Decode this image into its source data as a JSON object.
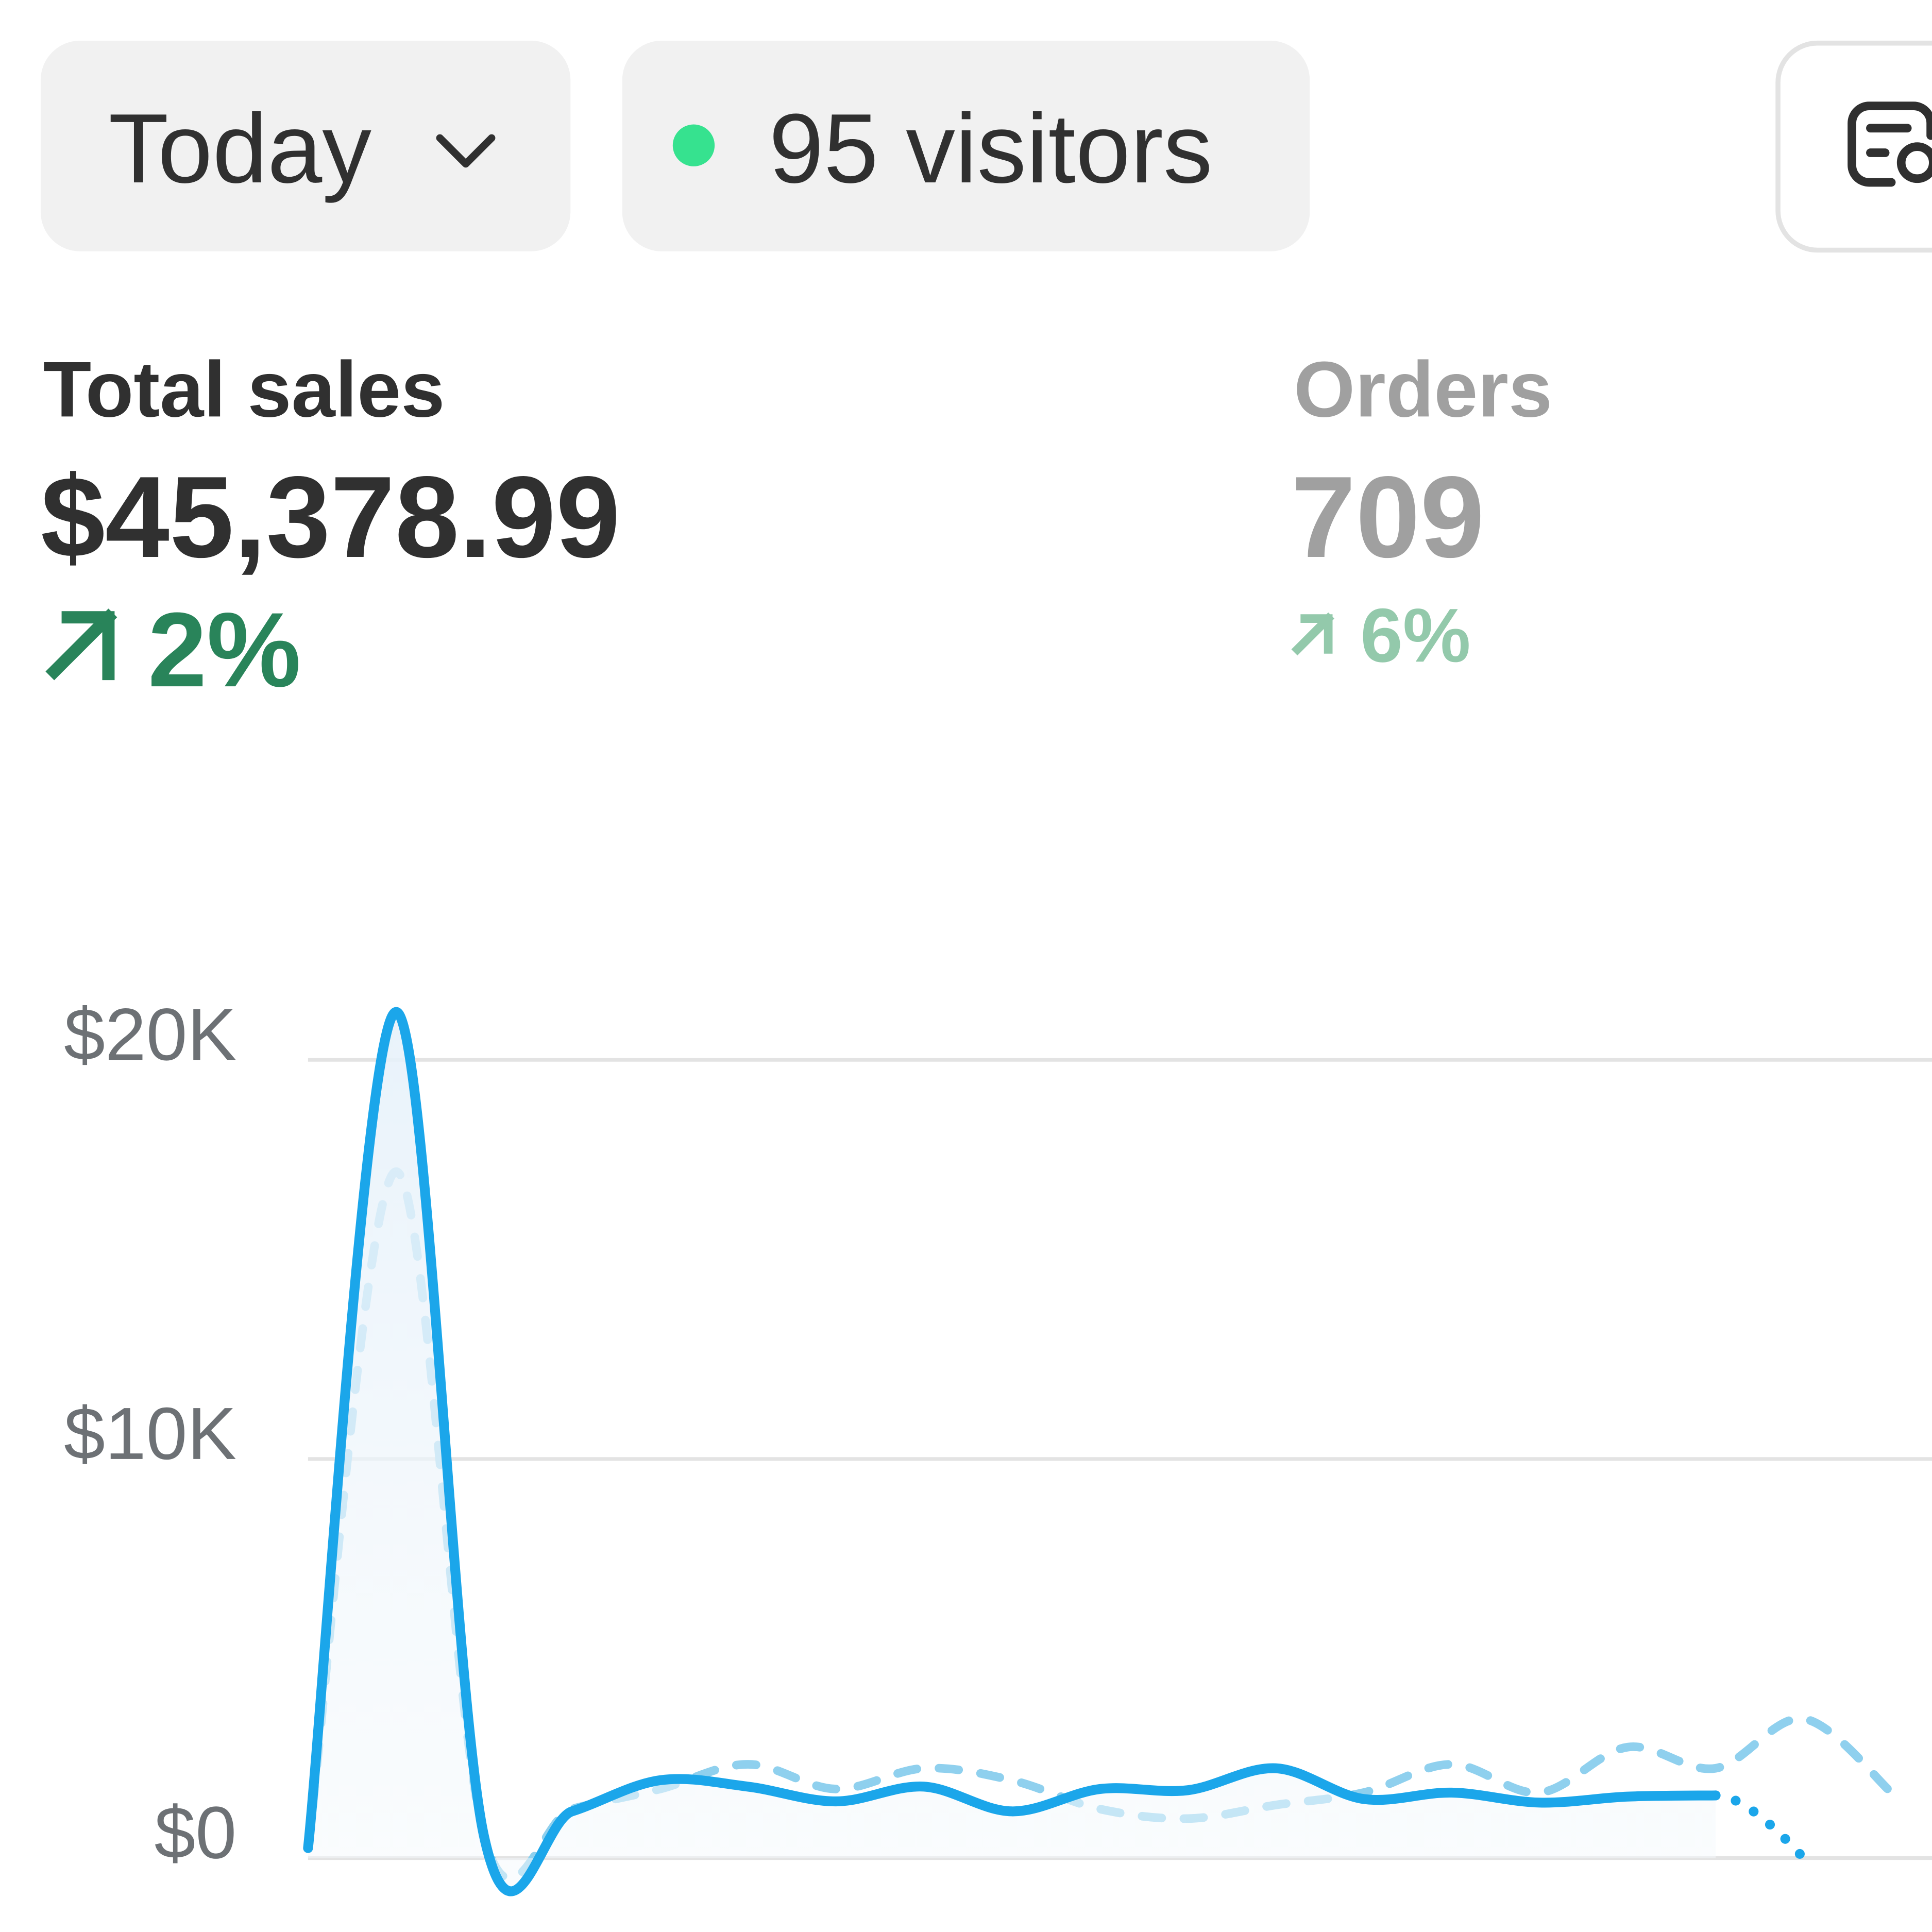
{
  "controls": {
    "date_range": "Today",
    "live_visitors": "95 visitors"
  },
  "metrics": [
    {
      "label": "Total sales",
      "value": "$45,378.99",
      "change": "2%"
    },
    {
      "label": "Orders",
      "value": "709",
      "change": "6%"
    }
  ],
  "chart_data": {
    "type": "line",
    "categories": [
      null,
      null,
      null,
      null,
      null,
      null,
      null,
      null,
      null,
      null,
      null,
      null,
      null,
      null,
      null,
      null,
      null,
      null,
      null
    ],
    "series": [
      {
        "color": "#1ba6ea",
        "line_style": "solid",
        "fill_area": true,
        "dotted_last_segment": true,
        "values": [
          250,
          21200,
          550,
          1170,
          1950,
          1790,
          1420,
          1790,
          1170,
          1730,
          1700,
          2250,
          1480,
          1640,
          1390,
          1540,
          1570,
          0,
          null
        ]
      },
      {
        "color": "#8fd0ee",
        "line_style": "dashed",
        "values": [
          250,
          17200,
          550,
          1230,
          1730,
          2350,
          1730,
          2250,
          1950,
          1230,
          990,
          1330,
          1640,
          2350,
          1640,
          2780,
          2250,
          3490,
          1640
        ]
      }
    ],
    "ylim": [
      0,
      23000
    ],
    "yticks": [
      {
        "value": 0,
        "label": "$0"
      },
      {
        "value": 10000,
        "label": "$10K"
      },
      {
        "value": 20000,
        "label": "$20K"
      }
    ],
    "grid": true
  }
}
